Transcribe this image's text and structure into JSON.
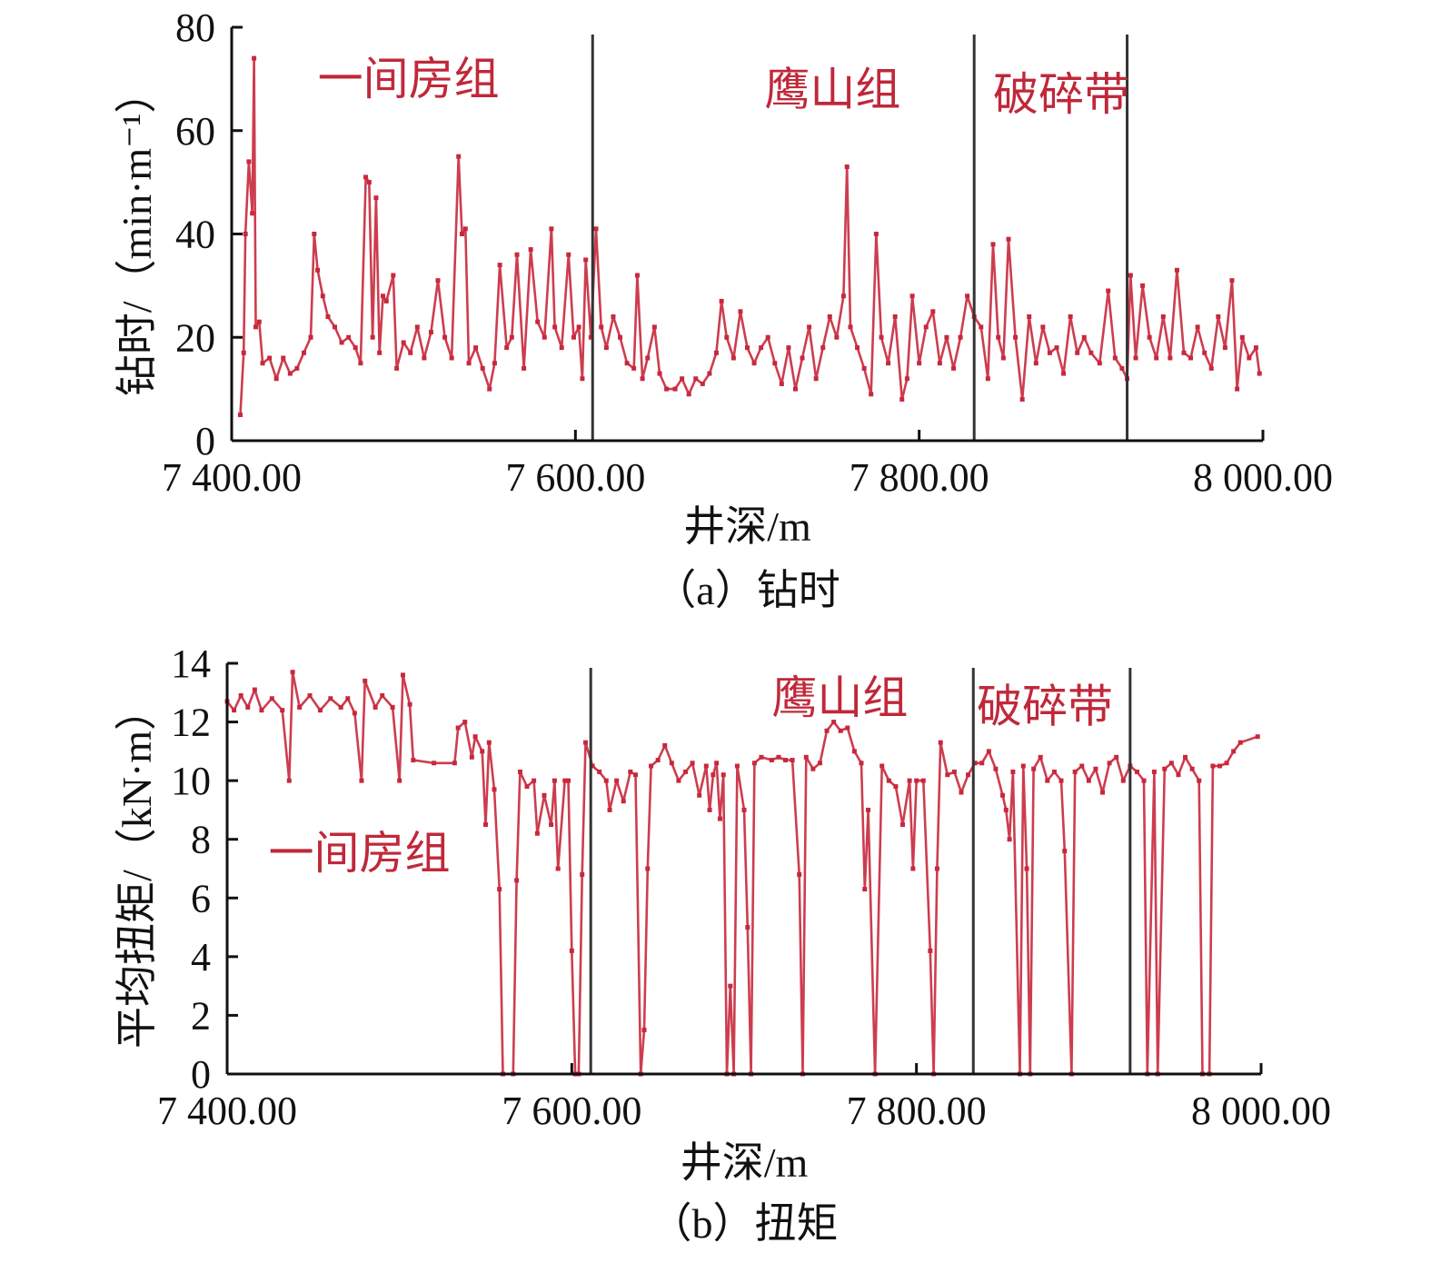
{
  "chart_data": [
    {
      "type": "line",
      "caption": "（a）钻时",
      "xlabel": "井深/m",
      "ylabel": "钻时/（min·m⁻¹）",
      "xlim": [
        7400,
        8000
      ],
      "ylim": [
        0,
        80
      ],
      "xticks": [
        7400,
        7600,
        7800,
        8000
      ],
      "xtick_labels": [
        "7 400.00",
        "7 600.00",
        "7 800.00",
        "8 000.00"
      ],
      "yticks": [
        0,
        20,
        40,
        60,
        80
      ],
      "ytick_labels": [
        "0",
        "20",
        "40",
        "60",
        "80"
      ],
      "boundaries": [
        7610,
        7832,
        7921
      ],
      "regions": [
        {
          "label": "一间房组",
          "x": 7450,
          "y": 67
        },
        {
          "label": "鹰山组",
          "x": 7710,
          "y": 65
        },
        {
          "label": "破碎带",
          "x": 7843,
          "y": 64
        }
      ],
      "series_color": "#c8283c",
      "x": [
        7405,
        7407,
        7408,
        7410,
        7412,
        7413,
        7414,
        7416,
        7418,
        7422,
        7426,
        7430,
        7434,
        7438,
        7442,
        7446,
        7448,
        7450,
        7453,
        7456,
        7460,
        7464,
        7468,
        7472,
        7475,
        7478,
        7480,
        7482,
        7484,
        7486,
        7488,
        7490,
        7494,
        7496,
        7500,
        7504,
        7508,
        7512,
        7516,
        7520,
        7524,
        7528,
        7532,
        7534,
        7536,
        7538,
        7542,
        7546,
        7550,
        7553,
        7556,
        7560,
        7563,
        7566,
        7570,
        7574,
        7578,
        7582,
        7586,
        7588,
        7592,
        7596,
        7599,
        7602,
        7604,
        7606,
        7609,
        7612,
        7615,
        7618,
        7622,
        7626,
        7630,
        7634,
        7636,
        7639,
        7642,
        7646,
        7649,
        7653,
        7658,
        7662,
        7666,
        7670,
        7674,
        7678,
        7682,
        7685,
        7688,
        7692,
        7696,
        7700,
        7704,
        7708,
        7712,
        7716,
        7720,
        7724,
        7728,
        7732,
        7736,
        7740,
        7744,
        7748,
        7752,
        7756,
        7758,
        7760,
        7764,
        7768,
        7772,
        7775,
        7778,
        7782,
        7786,
        7790,
        7793,
        7796,
        7800,
        7804,
        7808,
        7812,
        7816,
        7820,
        7824,
        7828,
        7832,
        7836,
        7840,
        7843,
        7846,
        7849,
        7852,
        7856,
        7860,
        7864,
        7868,
        7872,
        7876,
        7880,
        7884,
        7888,
        7892,
        7896,
        7900,
        7905,
        7910,
        7914,
        7918,
        7921,
        7923,
        7926,
        7930,
        7934,
        7938,
        7942,
        7946,
        7950,
        7954,
        7958,
        7962,
        7966,
        7970,
        7974,
        7978,
        7982,
        7985,
        7988,
        7992,
        7996,
        7998
      ],
      "y": [
        5,
        17,
        40,
        54,
        44,
        74,
        22,
        23,
        15,
        16,
        12,
        16,
        13,
        14,
        17,
        20,
        40,
        33,
        28,
        24,
        22,
        19,
        20,
        18,
        15,
        51,
        50,
        20,
        47,
        17,
        28,
        27,
        32,
        14,
        19,
        17,
        22,
        16,
        21,
        31,
        20,
        16,
        55,
        40,
        41,
        15,
        18,
        14,
        10,
        15,
        34,
        18,
        20,
        36,
        14,
        37,
        23,
        20,
        41,
        22,
        18,
        36,
        20,
        22,
        12,
        35,
        20,
        41,
        22,
        18,
        24,
        20,
        15,
        14,
        32,
        12,
        16,
        22,
        13,
        10,
        10,
        12,
        9,
        12,
        11,
        13,
        17,
        27,
        20,
        16,
        25,
        18,
        15,
        18,
        20,
        15,
        11,
        18,
        10,
        16,
        22,
        12,
        18,
        24,
        20,
        28,
        53,
        22,
        18,
        14,
        9,
        40,
        20,
        15,
        24,
        8,
        12,
        28,
        15,
        22,
        25,
        15,
        20,
        14,
        20,
        28,
        24,
        22,
        12,
        38,
        20,
        16,
        39,
        20,
        8,
        24,
        15,
        22,
        17,
        18,
        13,
        24,
        17,
        20,
        17,
        15,
        29,
        16,
        14,
        12,
        32,
        16,
        30,
        20,
        16,
        24,
        16,
        33,
        17,
        16,
        22,
        17,
        14,
        24,
        18,
        31,
        10,
        20,
        16,
        18,
        13
      ]
    },
    {
      "type": "line",
      "caption": "（b）扭矩",
      "xlabel": "井深/m",
      "ylabel": "平均扭矩/（kN·m）",
      "xlim": [
        7400,
        8000
      ],
      "ylim": [
        0,
        14
      ],
      "xticks": [
        7400,
        7600,
        7800,
        8000
      ],
      "xtick_labels": [
        "7 400.00",
        "7 600.00",
        "7 800.00",
        "8 000.00"
      ],
      "yticks": [
        0,
        2,
        4,
        6,
        8,
        10,
        12,
        14
      ],
      "ytick_labels": [
        "0",
        "2",
        "4",
        "6",
        "8",
        "10",
        "12",
        "14"
      ],
      "boundaries": [
        7611,
        7833,
        7924
      ],
      "regions": [
        {
          "label": "鹰山组",
          "x": 7716,
          "y": 12.3
        },
        {
          "label": "破碎带",
          "x": 7835,
          "y": 12.0
        },
        {
          "label": "一间房组",
          "x": 7424,
          "y": 7.0
        }
      ],
      "series_color": "#c8283c",
      "x": [
        7400,
        7404,
        7408,
        7412,
        7416,
        7420,
        7426,
        7432,
        7436,
        7438,
        7442,
        7448,
        7454,
        7460,
        7466,
        7470,
        7474,
        7478,
        7480,
        7486,
        7490,
        7496,
        7500,
        7502,
        7506,
        7508,
        7520,
        7532,
        7534,
        7538,
        7542,
        7544,
        7548,
        7550,
        7552,
        7555,
        7558,
        7560,
        7566,
        7568,
        7570,
        7574,
        7578,
        7580,
        7584,
        7588,
        7590,
        7592,
        7596,
        7598,
        7600,
        7602,
        7604,
        7606,
        7608,
        7612,
        7616,
        7620,
        7622,
        7626,
        7630,
        7634,
        7637,
        7640,
        7642,
        7644,
        7646,
        7650,
        7654,
        7658,
        7662,
        7666,
        7670,
        7674,
        7678,
        7680,
        7682,
        7684,
        7686,
        7688,
        7690,
        7692,
        7694,
        7696,
        7700,
        7702,
        7704,
        7706,
        7710,
        7716,
        7720,
        7724,
        7728,
        7732,
        7734,
        7736,
        7740,
        7744,
        7748,
        7752,
        7756,
        7760,
        7764,
        7768,
        7770,
        7772,
        7776,
        7780,
        7784,
        7788,
        7792,
        7796,
        7798,
        7800,
        7804,
        7808,
        7810,
        7812,
        7814,
        7818,
        7822,
        7826,
        7830,
        7834,
        7838,
        7842,
        7846,
        7850,
        7852,
        7854,
        7856,
        7860,
        7862,
        7864,
        7866,
        7868,
        7872,
        7876,
        7880,
        7884,
        7886,
        7890,
        7892,
        7896,
        7900,
        7904,
        7908,
        7912,
        7916,
        7920,
        7924,
        7928,
        7932,
        7934,
        7938,
        7940,
        7944,
        7948,
        7952,
        7956,
        7960,
        7964,
        7966,
        7970,
        7972,
        7976,
        7980,
        7984,
        7988,
        7998
      ],
      "y": [
        12.7,
        12.4,
        12.9,
        12.5,
        13.1,
        12.4,
        12.8,
        12.4,
        10.0,
        13.7,
        12.5,
        12.9,
        12.4,
        12.8,
        12.5,
        12.8,
        12.3,
        10.0,
        13.4,
        12.5,
        12.9,
        12.5,
        10.0,
        13.6,
        12.6,
        10.7,
        10.6,
        10.6,
        11.8,
        12.0,
        10.8,
        11.5,
        11.0,
        8.5,
        11.3,
        9.7,
        6.3,
        0,
        0,
        6.6,
        10.3,
        9.8,
        10.0,
        8.2,
        9.5,
        8.5,
        10.0,
        7.0,
        10.0,
        10.0,
        4.2,
        0,
        0,
        6.8,
        11.3,
        10.5,
        10.3,
        10.0,
        9.0,
        10.0,
        9.3,
        10.3,
        10.2,
        0,
        1.5,
        7.0,
        10.5,
        10.7,
        11.2,
        10.6,
        10.0,
        10.3,
        10.6,
        9.5,
        10.5,
        9.0,
        10.2,
        10.6,
        8.7,
        10.2,
        0,
        3.0,
        0,
        10.5,
        9.0,
        5.0,
        0,
        10.6,
        10.8,
        10.7,
        10.8,
        10.7,
        10.7,
        6.8,
        0,
        10.8,
        10.4,
        10.6,
        11.7,
        12.0,
        11.7,
        11.8,
        11.0,
        10.6,
        6.3,
        9.0,
        0,
        10.5,
        10.0,
        9.8,
        8.5,
        10.0,
        7.0,
        10.0,
        10.0,
        4.2,
        0,
        7.0,
        11.3,
        10.2,
        10.3,
        9.6,
        10.2,
        10.6,
        10.6,
        11.0,
        10.4,
        9.5,
        9.0,
        8.0,
        10.3,
        0,
        10.5,
        7.0,
        0,
        10.4,
        10.8,
        10.0,
        10.3,
        10.0,
        7.6,
        0,
        10.3,
        10.5,
        10.0,
        10.4,
        9.6,
        10.6,
        10.8,
        10.0,
        10.5,
        10.3,
        10.0,
        0,
        10.3,
        0,
        10.4,
        10.6,
        10.2,
        10.8,
        10.4,
        10.0,
        0,
        0,
        10.5,
        10.5,
        10.6,
        11.0,
        11.3,
        11.5
      ]
    }
  ]
}
